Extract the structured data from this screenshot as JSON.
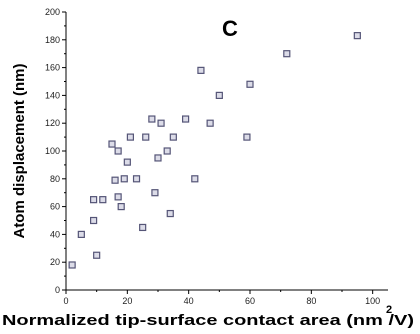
{
  "chart_data": {
    "type": "scatter",
    "panel_label": "C",
    "xlabel": "Normalized tip-surface contact area (nm /V)",
    "xlabel_superscript": "2",
    "ylabel": "Atom displacement (nm)",
    "xlim": [
      0,
      105
    ],
    "ylim": [
      0,
      200
    ],
    "x_ticks": [
      0,
      20,
      40,
      60,
      80,
      100
    ],
    "y_ticks": [
      0,
      20,
      40,
      60,
      80,
      100,
      120,
      140,
      160,
      180,
      200
    ],
    "grid": false,
    "marker": "open-square",
    "marker_color": "#555577",
    "series": [
      {
        "x": [
          2,
          5,
          9,
          9,
          10,
          12,
          15,
          16,
          17,
          17,
          18,
          19,
          20,
          21,
          23,
          25,
          26,
          28,
          29,
          30,
          31,
          33,
          34,
          35,
          39,
          42,
          44,
          47,
          50,
          59,
          60,
          72,
          95
        ],
        "y": [
          18,
          40,
          50,
          65,
          25,
          65,
          105,
          79,
          67,
          100,
          60,
          80,
          92,
          110,
          80,
          45,
          110,
          123,
          70,
          95,
          120,
          100,
          55,
          110,
          123,
          80,
          158,
          120,
          140,
          110,
          148,
          170,
          183
        ]
      }
    ]
  }
}
